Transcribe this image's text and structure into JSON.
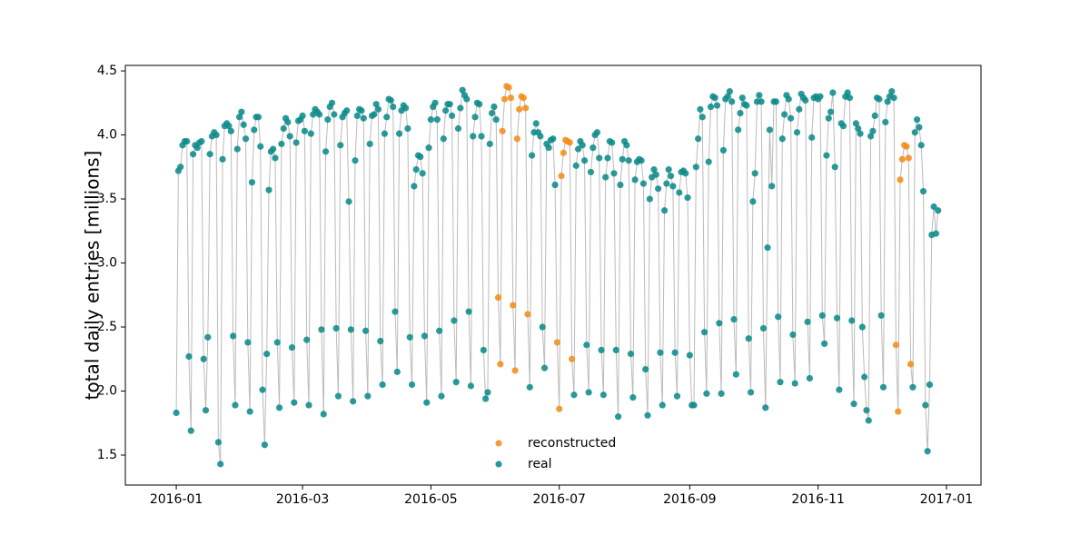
{
  "chart_data": {
    "type": "scatter",
    "y_label": "total daily entries [millions]",
    "x": [
      0,
      1,
      2,
      3,
      4,
      5,
      6,
      7,
      8,
      9,
      10,
      11,
      12,
      13,
      14,
      15,
      16,
      17,
      18,
      19,
      20,
      21,
      22,
      23,
      24,
      25,
      26,
      27,
      28,
      29,
      30,
      31,
      32,
      33,
      34,
      35,
      36,
      37,
      38,
      39,
      40,
      41,
      42,
      43,
      44,
      45,
      46,
      47,
      48,
      49,
      50,
      51,
      52,
      53,
      54,
      55,
      56,
      57,
      58,
      59,
      60,
      61,
      62,
      63,
      64,
      65,
      66,
      67,
      68,
      69,
      70,
      71,
      72,
      73,
      74,
      75,
      76,
      77,
      78,
      79,
      80,
      81,
      82,
      83,
      84,
      85,
      86,
      87,
      88,
      89,
      90,
      91,
      92,
      93,
      94,
      95,
      96,
      97,
      98,
      99,
      100,
      101,
      102,
      103,
      104,
      105,
      106,
      107,
      108,
      109,
      110,
      111,
      112,
      113,
      114,
      115,
      116,
      117,
      118,
      119,
      120,
      121,
      122,
      123,
      124,
      125,
      126,
      127,
      128,
      129,
      130,
      131,
      132,
      133,
      134,
      135,
      136,
      137,
      138,
      139,
      140,
      141,
      142,
      143,
      144,
      145,
      146,
      147,
      148,
      149,
      150,
      151,
      152,
      153,
      154,
      155,
      156,
      157,
      158,
      159,
      160,
      161,
      162,
      163,
      164,
      165,
      166,
      167,
      168,
      169,
      170,
      171,
      172,
      173,
      174,
      175,
      176,
      177,
      178,
      179,
      180,
      181,
      182,
      183,
      184,
      185,
      186,
      187,
      188,
      189,
      190,
      191,
      192,
      193,
      194,
      195,
      196,
      197,
      198,
      199,
      200,
      201,
      202,
      203,
      204,
      205,
      206,
      207,
      208,
      209,
      210,
      211,
      212,
      213,
      214,
      215,
      216,
      217,
      218,
      219,
      220,
      221,
      222,
      223,
      224,
      225,
      226,
      227,
      228,
      229,
      230,
      231,
      232,
      233,
      234,
      235,
      236,
      237,
      238,
      239,
      240,
      241,
      242,
      243,
      244,
      245,
      246,
      247,
      248,
      249,
      250,
      251,
      252,
      253,
      254,
      255,
      256,
      257,
      258,
      259,
      260,
      261,
      262,
      263,
      264,
      265,
      266,
      267,
      268,
      269,
      270,
      271,
      272,
      273,
      274,
      275,
      276,
      277,
      278,
      279,
      280,
      281,
      282,
      283,
      284,
      285,
      286,
      287,
      288,
      289,
      290,
      291,
      292,
      293,
      294,
      295,
      296,
      297,
      298,
      299,
      300,
      301,
      302,
      303,
      304,
      305,
      306,
      307,
      308,
      309,
      310,
      311,
      312,
      313,
      314,
      315,
      316,
      317,
      318,
      319,
      320,
      321,
      322,
      323,
      324,
      325,
      326,
      327,
      328,
      329,
      330,
      331,
      332,
      333,
      334,
      335,
      336,
      337,
      338,
      339,
      340,
      341,
      342,
      343,
      344,
      345,
      346,
      347,
      348,
      349,
      350,
      351,
      352,
      353,
      354,
      355,
      356,
      357,
      358,
      359,
      360,
      361,
      362
    ],
    "series": [
      {
        "name": "reconstructed",
        "color": "#f28e1c",
        "values": [
          null,
          null,
          null,
          null,
          null,
          null,
          null,
          null,
          null,
          null,
          null,
          null,
          null,
          null,
          null,
          null,
          null,
          null,
          null,
          null,
          null,
          null,
          null,
          null,
          null,
          null,
          null,
          null,
          null,
          null,
          null,
          null,
          null,
          null,
          null,
          null,
          null,
          null,
          null,
          null,
          null,
          null,
          null,
          null,
          null,
          null,
          null,
          null,
          null,
          null,
          null,
          null,
          null,
          null,
          null,
          null,
          null,
          null,
          null,
          null,
          null,
          null,
          null,
          null,
          null,
          null,
          null,
          null,
          null,
          null,
          null,
          null,
          null,
          null,
          null,
          null,
          null,
          null,
          null,
          null,
          null,
          null,
          null,
          null,
          null,
          null,
          null,
          null,
          null,
          null,
          null,
          null,
          null,
          null,
          null,
          null,
          null,
          null,
          null,
          null,
          null,
          null,
          null,
          null,
          null,
          null,
          null,
          null,
          null,
          null,
          null,
          null,
          null,
          null,
          null,
          null,
          null,
          null,
          null,
          null,
          null,
          null,
          null,
          null,
          null,
          null,
          null,
          null,
          null,
          null,
          null,
          null,
          null,
          null,
          null,
          null,
          null,
          null,
          null,
          null,
          null,
          null,
          null,
          null,
          null,
          null,
          null,
          null,
          null,
          null,
          null,
          null,
          null,
          2.73,
          2.21,
          4.03,
          4.28,
          4.38,
          4.37,
          4.29,
          2.67,
          2.16,
          3.97,
          4.2,
          4.3,
          4.29,
          4.21,
          2.6,
          null,
          null,
          null,
          null,
          null,
          null,
          null,
          null,
          null,
          null,
          null,
          null,
          null,
          2.38,
          1.86,
          3.68,
          3.86,
          3.96,
          3.95,
          3.94,
          2.25,
          null,
          null,
          null,
          null,
          null,
          null,
          null,
          null,
          null,
          null,
          null,
          null,
          null,
          null,
          null,
          null,
          null,
          null,
          null,
          null,
          null,
          null,
          null,
          null,
          null,
          null,
          null,
          null,
          null,
          null,
          null,
          null,
          null,
          null,
          null,
          null,
          null,
          null,
          null,
          null,
          null,
          null,
          null,
          null,
          null,
          null,
          null,
          null,
          null,
          null,
          null,
          null,
          null,
          null,
          null,
          null,
          null,
          null,
          null,
          null,
          null,
          null,
          null,
          null,
          null,
          null,
          null,
          null,
          null,
          null,
          null,
          null,
          null,
          null,
          null,
          null,
          null,
          null,
          null,
          null,
          null,
          null,
          null,
          null,
          null,
          null,
          null,
          null,
          null,
          null,
          null,
          null,
          null,
          null,
          null,
          null,
          null,
          null,
          null,
          null,
          null,
          null,
          null,
          null,
          null,
          null,
          null,
          null,
          null,
          null,
          null,
          null,
          null,
          null,
          null,
          null,
          null,
          null,
          null,
          null,
          null,
          null,
          null,
          null,
          null,
          null,
          null,
          null,
          null,
          null,
          null,
          null,
          null,
          null,
          null,
          null,
          null,
          null,
          null,
          null,
          null,
          null,
          null,
          null,
          null,
          null,
          null,
          null,
          null,
          null,
          null,
          null,
          null,
          2.36,
          1.84,
          3.65,
          3.81,
          3.92,
          3.91,
          3.82,
          2.21,
          null,
          null,
          null,
          null,
          null,
          null,
          null,
          null,
          null,
          null,
          null,
          null,
          null
        ]
      },
      {
        "name": "real",
        "color": "#0e8b8b",
        "values": [
          1.83,
          3.72,
          3.75,
          3.92,
          3.95,
          3.95,
          2.27,
          1.69,
          3.85,
          3.92,
          3.9,
          3.94,
          3.95,
          2.25,
          1.85,
          2.42,
          3.85,
          3.99,
          4.02,
          4.0,
          1.6,
          1.43,
          3.81,
          4.07,
          4.09,
          4.07,
          4.03,
          2.43,
          1.89,
          3.89,
          4.14,
          4.18,
          4.08,
          3.97,
          2.38,
          1.84,
          3.63,
          4.04,
          4.14,
          4.14,
          3.91,
          2.01,
          1.58,
          2.29,
          3.57,
          3.87,
          3.89,
          3.82,
          2.38,
          1.87,
          3.93,
          4.05,
          4.13,
          4.1,
          3.99,
          2.34,
          1.91,
          3.94,
          4.11,
          4.12,
          4.15,
          4.03,
          2.4,
          1.89,
          4.01,
          4.16,
          4.2,
          4.18,
          4.16,
          2.48,
          1.82,
          3.87,
          4.12,
          4.22,
          4.25,
          4.16,
          2.49,
          1.96,
          3.92,
          4.14,
          4.17,
          4.19,
          3.48,
          2.48,
          1.92,
          3.8,
          4.15,
          4.2,
          4.19,
          4.13,
          2.47,
          1.96,
          3.93,
          4.15,
          4.16,
          4.24,
          4.2,
          2.39,
          2.05,
          4.01,
          4.14,
          4.28,
          4.27,
          4.22,
          2.62,
          2.15,
          4.01,
          4.19,
          4.23,
          4.21,
          4.05,
          2.42,
          2.05,
          3.6,
          3.73,
          3.84,
          3.83,
          3.7,
          2.43,
          1.91,
          3.9,
          4.12,
          4.22,
          4.25,
          4.12,
          2.47,
          1.96,
          3.97,
          4.19,
          4.24,
          4.24,
          4.15,
          2.55,
          2.07,
          4.05,
          4.21,
          4.35,
          4.31,
          4.28,
          2.62,
          2.04,
          3.99,
          4.14,
          4.25,
          4.24,
          3.99,
          2.32,
          1.94,
          1.99,
          3.93,
          4.17,
          4.22,
          4.12,
          null,
          null,
          null,
          null,
          null,
          null,
          null,
          null,
          null,
          null,
          null,
          null,
          null,
          null,
          null,
          2.03,
          3.84,
          4.02,
          4.09,
          4.02,
          3.99,
          2.5,
          2.18,
          3.93,
          3.9,
          3.96,
          3.97,
          3.61,
          null,
          null,
          null,
          null,
          null,
          null,
          null,
          null,
          1.97,
          3.76,
          3.89,
          3.95,
          3.92,
          3.8,
          2.36,
          1.99,
          3.71,
          3.9,
          4.0,
          4.02,
          3.82,
          2.32,
          1.97,
          3.67,
          3.82,
          3.95,
          3.94,
          3.7,
          2.32,
          1.8,
          3.61,
          3.81,
          3.95,
          3.92,
          3.8,
          2.29,
          1.95,
          3.65,
          3.79,
          3.81,
          3.8,
          3.62,
          2.17,
          1.81,
          3.5,
          3.67,
          3.73,
          3.69,
          3.58,
          2.3,
          1.89,
          3.41,
          3.62,
          3.73,
          3.68,
          3.6,
          2.3,
          1.96,
          3.55,
          3.71,
          3.72,
          3.7,
          3.51,
          2.28,
          1.89,
          1.89,
          3.75,
          3.97,
          4.2,
          4.14,
          2.46,
          1.98,
          3.79,
          4.22,
          4.3,
          4.29,
          4.23,
          2.53,
          1.98,
          3.88,
          4.28,
          4.3,
          4.34,
          4.26,
          2.56,
          2.13,
          4.04,
          4.17,
          4.29,
          4.24,
          4.23,
          2.41,
          1.99,
          3.48,
          3.7,
          4.26,
          4.31,
          4.26,
          2.49,
          1.87,
          3.12,
          4.04,
          3.6,
          4.26,
          4.26,
          2.58,
          2.07,
          3.97,
          4.16,
          4.31,
          4.28,
          4.13,
          2.44,
          2.06,
          4.02,
          4.2,
          4.32,
          4.29,
          4.27,
          2.54,
          2.1,
          3.98,
          4.29,
          4.3,
          4.28,
          4.3,
          2.59,
          2.37,
          3.84,
          4.13,
          4.18,
          4.33,
          3.75,
          2.57,
          2.01,
          4.09,
          4.07,
          4.3,
          4.33,
          4.29,
          2.55,
          1.9,
          4.09,
          4.05,
          4.01,
          2.5,
          2.11,
          1.85,
          1.77,
          3.99,
          4.03,
          4.15,
          4.29,
          4.28,
          2.59,
          2.03,
          4.1,
          4.26,
          4.3,
          4.34,
          4.29,
          null,
          null,
          null,
          null,
          null,
          null,
          null,
          null,
          2.03,
          4.02,
          4.12,
          4.06,
          3.92,
          3.56,
          1.89,
          1.53,
          2.05,
          3.22,
          3.44,
          3.23,
          3.41
        ]
      }
    ],
    "line_color": "#bbbbbb",
    "xlim": [
      -24.2,
      382.4
    ],
    "xticks": [
      {
        "value": 0,
        "label": "2016-01"
      },
      {
        "value": 60,
        "label": "2016-03"
      },
      {
        "value": 121,
        "label": "2016-05"
      },
      {
        "value": 182,
        "label": "2016-07"
      },
      {
        "value": 244,
        "label": "2016-09"
      },
      {
        "value": 305,
        "label": "2016-11"
      },
      {
        "value": 366,
        "label": "2017-01"
      }
    ],
    "ylim": [
      1.266,
      4.543
    ],
    "yticks": [
      1.5,
      {
        "value": 2,
        "label": "2.0"
      },
      2.5,
      {
        "value": 3,
        "label": "3.0"
      },
      3.5,
      {
        "value": 4,
        "label": "4.0"
      },
      4.5
    ],
    "legend": "lower center"
  }
}
